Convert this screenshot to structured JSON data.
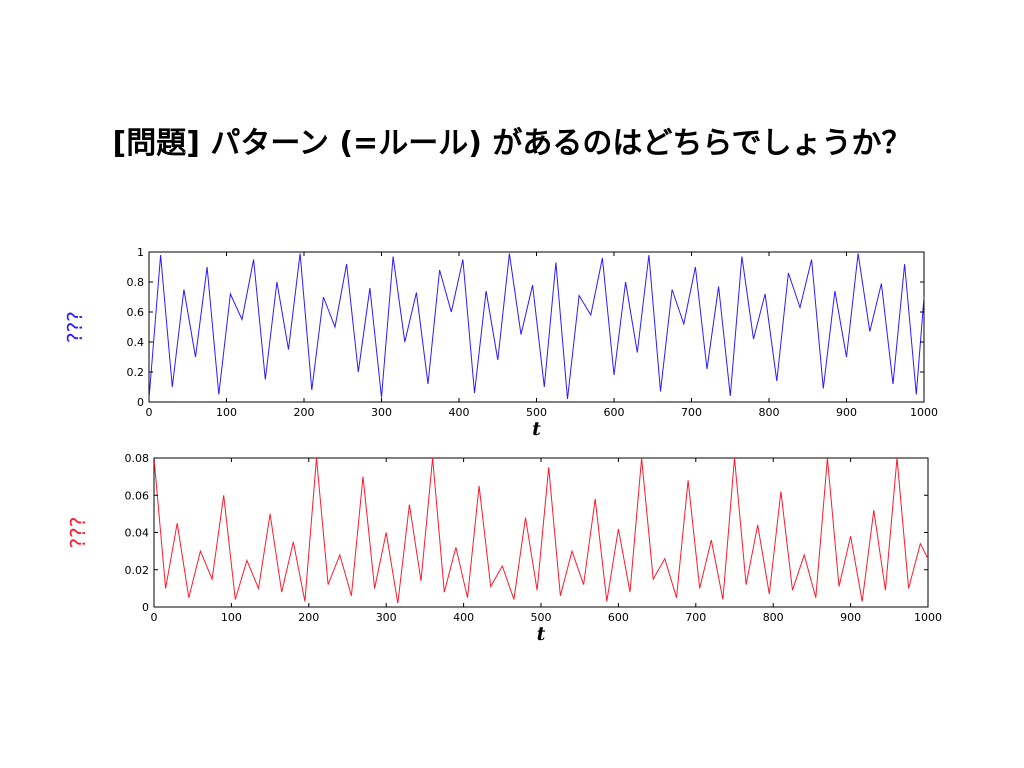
{
  "slide": {
    "title": "[問題] パターン (=ルール) があるのはどちらでしょうか？"
  },
  "chart_data": [
    {
      "type": "line",
      "color": "#2a1cff",
      "xlabel": "t",
      "ylabel": "???",
      "xlim": [
        0,
        1000
      ],
      "ylim": [
        0,
        1
      ],
      "xticks": [
        "0",
        "100",
        "200",
        "300",
        "400",
        "500",
        "600",
        "700",
        "800",
        "900",
        "1000"
      ],
      "yticks": [
        "0",
        "0.2",
        "0.4",
        "0.6",
        "0.8",
        "1"
      ],
      "x": [
        0,
        15,
        30,
        45,
        60,
        75,
        90,
        105,
        120,
        135,
        150,
        165,
        180,
        195,
        210,
        225,
        240,
        255,
        270,
        285,
        300,
        315,
        330,
        345,
        360,
        375,
        390,
        405,
        420,
        435,
        450,
        465,
        480,
        495,
        510,
        525,
        540,
        555,
        570,
        585,
        600,
        615,
        630,
        645,
        660,
        675,
        690,
        705,
        720,
        735,
        750,
        765,
        780,
        795,
        810,
        825,
        840,
        855,
        870,
        885,
        900,
        915,
        930,
        945,
        960,
        975,
        990,
        1000
      ],
      "y": [
        0.02,
        0.98,
        0.1,
        0.75,
        0.3,
        0.9,
        0.05,
        0.72,
        0.55,
        0.95,
        0.15,
        0.8,
        0.35,
        0.99,
        0.08,
        0.7,
        0.5,
        0.92,
        0.2,
        0.76,
        0.03,
        0.97,
        0.4,
        0.73,
        0.12,
        0.88,
        0.6,
        0.95,
        0.06,
        0.74,
        0.28,
        0.99,
        0.45,
        0.78,
        0.1,
        0.93,
        0.02,
        0.71,
        0.58,
        0.96,
        0.18,
        0.8,
        0.33,
        0.98,
        0.07,
        0.75,
        0.52,
        0.9,
        0.22,
        0.77,
        0.04,
        0.97,
        0.42,
        0.72,
        0.14,
        0.86,
        0.63,
        0.95,
        0.09,
        0.74,
        0.3,
        0.99,
        0.47,
        0.79,
        0.12,
        0.92,
        0.05,
        0.7
      ]
    },
    {
      "type": "line",
      "color": "#ff1a2e",
      "xlabel": "t",
      "ylabel": "???",
      "xlim": [
        0,
        1000
      ],
      "ylim": [
        0,
        0.08
      ],
      "xticks": [
        "0",
        "100",
        "200",
        "300",
        "400",
        "500",
        "600",
        "700",
        "800",
        "900",
        "1000"
      ],
      "yticks": [
        "0",
        "0.02",
        "0.04",
        "0.06",
        "0.08"
      ],
      "x": [
        0,
        15,
        30,
        45,
        60,
        75,
        90,
        105,
        120,
        135,
        150,
        165,
        180,
        195,
        210,
        225,
        240,
        255,
        270,
        285,
        300,
        315,
        330,
        345,
        360,
        375,
        390,
        405,
        420,
        435,
        450,
        465,
        480,
        495,
        510,
        525,
        540,
        555,
        570,
        585,
        600,
        615,
        630,
        645,
        660,
        675,
        690,
        705,
        720,
        735,
        750,
        765,
        780,
        795,
        810,
        825,
        840,
        855,
        870,
        885,
        900,
        915,
        930,
        945,
        960,
        975,
        990,
        1000
      ],
      "y": [
        0.08,
        0.01,
        0.045,
        0.005,
        0.03,
        0.015,
        0.06,
        0.004,
        0.025,
        0.01,
        0.05,
        0.008,
        0.035,
        0.003,
        0.08,
        0.012,
        0.028,
        0.006,
        0.07,
        0.01,
        0.04,
        0.002,
        0.055,
        0.014,
        0.08,
        0.008,
        0.032,
        0.005,
        0.065,
        0.011,
        0.022,
        0.004,
        0.048,
        0.009,
        0.075,
        0.006,
        0.03,
        0.012,
        0.058,
        0.003,
        0.042,
        0.008,
        0.08,
        0.015,
        0.026,
        0.005,
        0.068,
        0.01,
        0.036,
        0.004,
        0.08,
        0.012,
        0.044,
        0.007,
        0.062,
        0.009,
        0.028,
        0.005,
        0.08,
        0.011,
        0.038,
        0.003,
        0.052,
        0.009,
        0.08,
        0.01,
        0.034,
        0.026
      ]
    }
  ]
}
